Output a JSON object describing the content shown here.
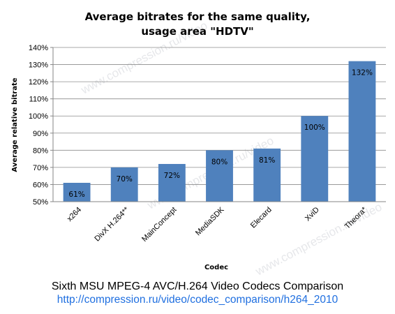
{
  "chart_data": {
    "type": "bar",
    "title_lines": [
      "Average bitrates for the same quality,",
      "usage area \"HDTV\""
    ],
    "xlabel": "Codec",
    "ylabel": "Average relative bitrate",
    "ylim": [
      50,
      140
    ],
    "ytick_step": 10,
    "yticks_format": "percent",
    "grid": true,
    "categories": [
      "x264",
      "DivX H.264**",
      "MainConcept",
      "MediaSDK",
      "Elecard",
      "XviD",
      "Theora*"
    ],
    "values": [
      61,
      70,
      72,
      80,
      81,
      100,
      132
    ],
    "data_labels": [
      "61%",
      "70%",
      "72%",
      "80%",
      "81%",
      "100%",
      "132%"
    ],
    "bar_color": "#4f81bd"
  },
  "caption": {
    "line1": "Sixth MSU MPEG-4 AVC/H.264 Video Codecs Comparison",
    "link": "http://compression.ru/video/codec_comparison/h264_2010",
    "link_color": "#1f6fe0"
  },
  "watermark": "www.compression.ru/video"
}
